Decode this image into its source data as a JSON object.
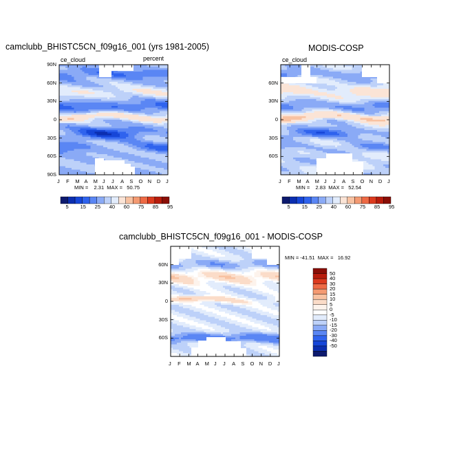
{
  "panel_a": {
    "title": "camclubb_BHISTC5CN_f09g16_001 (yrs 1981-2005)",
    "left_label": "ce_cloud",
    "right_label": "percent",
    "stats": "MIN =    2.31  MAX =   50.75"
  },
  "panel_b": {
    "title": "MODIS-COSP",
    "left_label": "ce_cloud",
    "stats": "MIN =    2.83  MAX =   52.54"
  },
  "panel_c": {
    "title": "camclubb_BHISTC5CN_f09g16_001 - MODIS-COSP",
    "stats": "MIN = -41.51  MAX =   16.92"
  },
  "months": [
    "J",
    "F",
    "M",
    "A",
    "M",
    "J",
    "J",
    "A",
    "S",
    "O",
    "N",
    "D",
    "J"
  ],
  "lat_ticks_a": [
    "90N",
    "60N",
    "30N",
    "0",
    "30S",
    "60S",
    "90S"
  ],
  "lat_ticks_bc": [
    "60N",
    "30N",
    "0",
    "30S",
    "60S"
  ],
  "colorbar_ab": {
    "labels": [
      "5",
      "15",
      "25",
      "40",
      "60",
      "75",
      "85",
      "95"
    ],
    "colors": [
      "#0d1a6e",
      "#0b2eb0",
      "#1646d8",
      "#2f63ee",
      "#5a86f4",
      "#8aaaf6",
      "#bdd1f9",
      "#e2ecfc",
      "#fbe4d6",
      "#f8c2a2",
      "#f49a72",
      "#ee6a45",
      "#dc3a1e",
      "#b81c0c",
      "#8a0e06"
    ]
  },
  "colorbar_c": {
    "labels": [
      "50",
      "40",
      "30",
      "20",
      "15",
      "10",
      "5",
      "0",
      "-5",
      "-10",
      "-15",
      "-20",
      "-30",
      "-40",
      "-50"
    ],
    "colors": [
      "#8a0e06",
      "#b81c0c",
      "#dc3a1e",
      "#ee6a45",
      "#f49a72",
      "#f8c2a2",
      "#fbdcc8",
      "#fdf3ec",
      "#ffffff",
      "#e2ecfc",
      "#bdd1f9",
      "#8aaaf6",
      "#5a86f4",
      "#2f63ee",
      "#1646d8",
      "#0b2eb0",
      "#0d1a6e"
    ]
  },
  "chart_data": [
    {
      "type": "heatmap",
      "title": "camclubb_BHISTC5CN_f09g16_001 (yrs 1981-2005)",
      "variable": "ce_cloud",
      "units": "percent",
      "x": [
        "J",
        "F",
        "M",
        "A",
        "M",
        "J",
        "J",
        "A",
        "S",
        "O",
        "N",
        "D",
        "J"
      ],
      "y_ticks": [
        "90N",
        "60N",
        "30N",
        "0",
        "30S",
        "60S",
        "90S"
      ],
      "min": 2.31,
      "max": 50.75,
      "contour_levels": [
        5,
        15,
        25,
        40,
        60,
        75,
        85,
        95
      ]
    },
    {
      "type": "heatmap",
      "title": "MODIS-COSP",
      "variable": "ce_cloud",
      "x": [
        "J",
        "F",
        "M",
        "A",
        "M",
        "J",
        "J",
        "A",
        "S",
        "O",
        "N",
        "D",
        "J"
      ],
      "y_ticks": [
        "60N",
        "30N",
        "0",
        "30S",
        "60S"
      ],
      "min": 2.83,
      "max": 52.54,
      "contour_levels": [
        5,
        15,
        25,
        40,
        60,
        75,
        85,
        95
      ]
    },
    {
      "type": "heatmap",
      "title": "camclubb_BHISTC5CN_f09g16_001 - MODIS-COSP",
      "x": [
        "J",
        "F",
        "M",
        "A",
        "M",
        "J",
        "J",
        "A",
        "S",
        "O",
        "N",
        "D",
        "J"
      ],
      "y_ticks": [
        "60N",
        "30N",
        "0",
        "30S",
        "60S"
      ],
      "min": -41.51,
      "max": 16.92,
      "contour_levels": [
        50,
        40,
        30,
        20,
        15,
        10,
        5,
        0,
        -5,
        -10,
        -15,
        -20,
        -30,
        -40,
        -50
      ]
    }
  ]
}
